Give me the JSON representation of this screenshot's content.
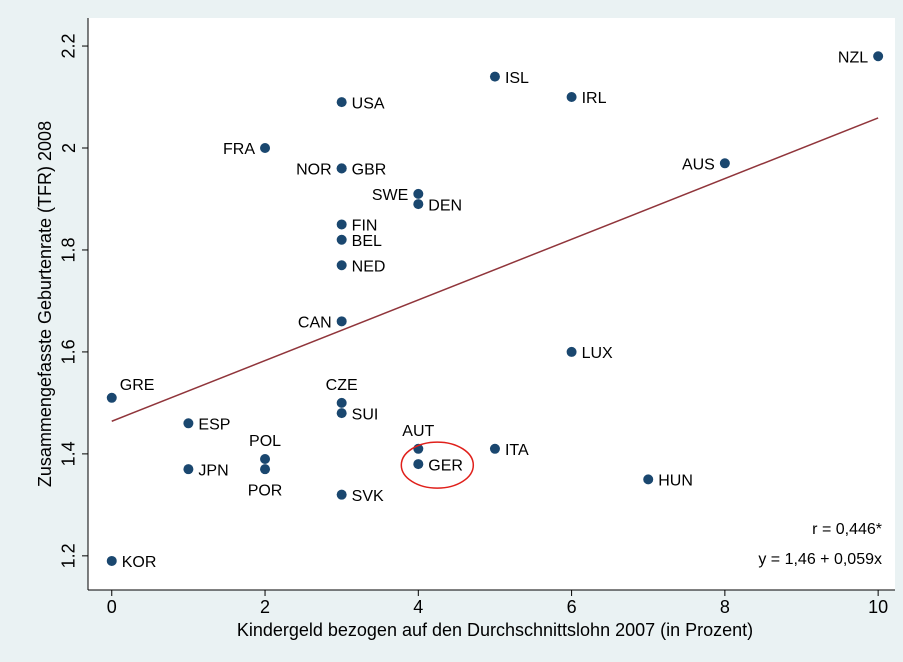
{
  "chart_data": {
    "type": "scatter",
    "x_label": "Kindergeld bezogen auf den Durchschnittslohn 2007 (in Prozent)",
    "y_label": "Zusammengefasste Geburtenrate (TFR) 2008",
    "labels": [
      "NZL",
      "ISL",
      "IRL",
      "USA",
      "FRA",
      "AUS",
      "NOR",
      "GBR",
      "SWE",
      "DEN",
      "FIN",
      "BEL",
      "NED",
      "CAN",
      "LUX",
      "GRE",
      "CZE",
      "SUI",
      "ESP",
      "AUT",
      "ITA",
      "POL",
      "GER",
      "JPN",
      "POR",
      "HUN",
      "SVK",
      "KOR"
    ],
    "x": [
      10,
      5,
      6,
      3,
      2,
      8,
      3,
      3,
      4,
      4,
      3,
      3,
      3,
      3,
      6,
      0,
      3,
      3,
      1,
      4,
      5,
      2,
      4,
      1,
      2,
      7,
      3,
      0
    ],
    "values": [
      2.18,
      2.14,
      2.1,
      2.09,
      2.0,
      1.97,
      1.96,
      1.96,
      1.91,
      1.89,
      1.85,
      1.82,
      1.77,
      1.66,
      1.6,
      1.51,
      1.5,
      1.48,
      1.46,
      1.41,
      1.41,
      1.39,
      1.38,
      1.37,
      1.37,
      1.35,
      1.32,
      1.19
    ],
    "color": "#1a476f",
    "fit": {
      "x": [
        0,
        10
      ],
      "y": [
        1.464,
        2.059
      ],
      "color": "#90353b"
    },
    "annotations": [
      "r = 0,446*",
      "y = 1,46 + 0,059x"
    ],
    "xlim": [
      -0.31,
      10.22
    ],
    "ylim": [
      1.133,
      2.255
    ],
    "xticks": [
      0,
      2,
      4,
      6,
      8,
      10
    ],
    "yticks": [
      1.2,
      1.4,
      1.6,
      1.8,
      2,
      2.2
    ],
    "grid": false
  }
}
